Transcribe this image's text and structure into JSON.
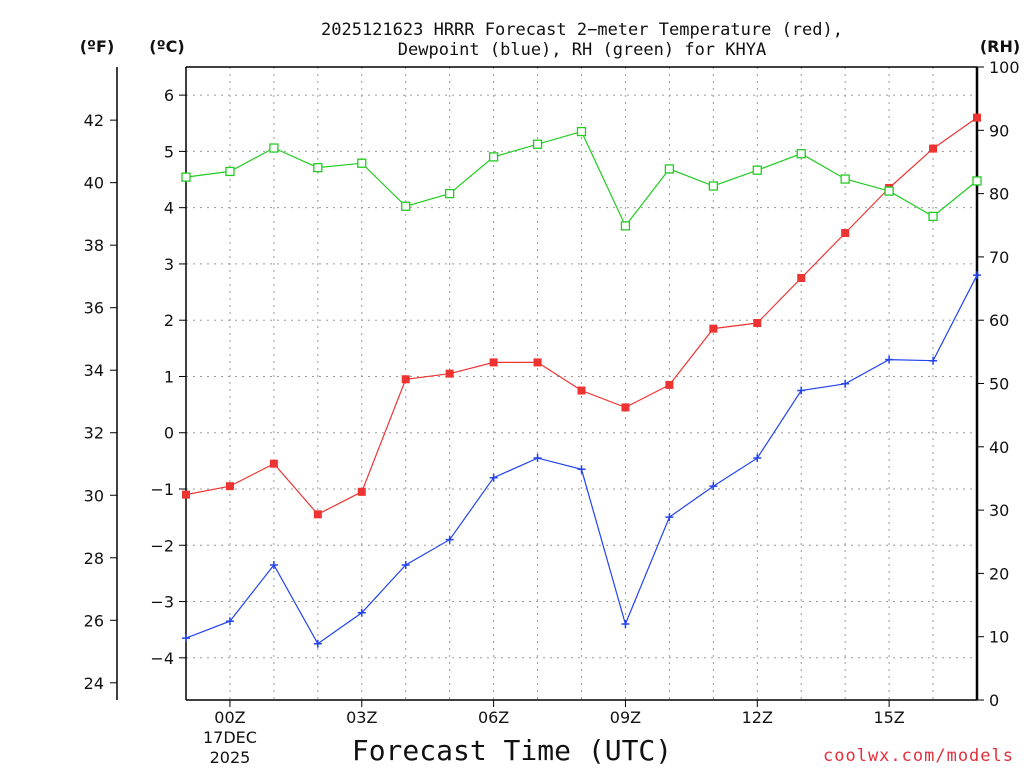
{
  "chart_data": {
    "type": "line",
    "title_line1": "2025121623 HRRR Forecast 2−meter Temperature (red),",
    "title_line2": "Dewpoint (blue), RH (green) for KHYA",
    "xlabel": "Forecast Time (UTC)",
    "credit": "coolwx.com/models",
    "units": {
      "fahrenheit": "(ºF)",
      "celsius": "(ºC)",
      "rh": "(RH)"
    },
    "x_hours": [
      -1,
      0,
      1,
      2,
      3,
      4,
      5,
      6,
      7,
      8,
      9,
      10,
      11,
      12,
      13,
      14,
      15,
      16,
      17
    ],
    "xlim": [
      -1,
      17
    ],
    "x_ticks": [
      {
        "hour": 0,
        "label": "00Z",
        "sub1": "17DEC",
        "sub2": "2025"
      },
      {
        "hour": 3,
        "label": "03Z"
      },
      {
        "hour": 6,
        "label": "06Z"
      },
      {
        "hour": 9,
        "label": "09Z"
      },
      {
        "hour": 12,
        "label": "12Z"
      },
      {
        "hour": 15,
        "label": "15Z"
      }
    ],
    "celsius_axis": {
      "ylim": [
        -4.75,
        6.5
      ],
      "ticks": [
        "-4",
        "-3",
        "-2",
        "-1",
        "0",
        "1",
        "2",
        "3",
        "4",
        "5",
        "6"
      ],
      "tick_values": [
        -4,
        -3,
        -2,
        -1,
        0,
        1,
        2,
        3,
        4,
        5,
        6
      ]
    },
    "fahrenheit_axis": {
      "ticks": [
        "24",
        "26",
        "28",
        "30",
        "32",
        "34",
        "36",
        "38",
        "40",
        "42"
      ],
      "tick_values": [
        24,
        26,
        28,
        30,
        32,
        34,
        36,
        38,
        40,
        42
      ]
    },
    "rh_axis": {
      "ylim": [
        0,
        100
      ],
      "ticks": [
        "0",
        "10",
        "20",
        "30",
        "40",
        "50",
        "60",
        "70",
        "80",
        "90",
        "100"
      ],
      "tick_values": [
        0,
        10,
        20,
        30,
        40,
        50,
        60,
        70,
        80,
        90,
        100
      ]
    },
    "series": [
      {
        "name": "Temperature",
        "units": "C",
        "axis": "celsius",
        "color": "#ee3333",
        "marker": "filled-square",
        "values": [
          -1.1,
          -0.95,
          -0.55,
          -1.45,
          -1.05,
          0.95,
          1.05,
          1.25,
          1.25,
          0.75,
          0.45,
          0.85,
          1.85,
          1.95,
          2.75,
          3.55,
          4.35,
          5.05,
          5.6
        ]
      },
      {
        "name": "Dewpoint",
        "units": "C",
        "axis": "celsius",
        "color": "#2244ee",
        "marker": "plus",
        "values": [
          -3.65,
          -3.35,
          -2.35,
          -3.75,
          -3.2,
          -2.35,
          -1.9,
          -0.8,
          -0.45,
          -0.65,
          -3.4,
          -1.5,
          -0.95,
          -0.45,
          0.75,
          0.87,
          1.3,
          1.28,
          2.8
        ]
      },
      {
        "name": "Relative Humidity",
        "units": "%",
        "axis": "rh",
        "color": "#22cc22",
        "marker": "open-square",
        "values": [
          82.6,
          83.5,
          87.2,
          84.1,
          84.8,
          78.0,
          80.0,
          85.8,
          87.8,
          89.8,
          74.9,
          83.9,
          81.2,
          83.7,
          86.3,
          82.3,
          80.4,
          76.4,
          82.0
        ]
      }
    ]
  }
}
